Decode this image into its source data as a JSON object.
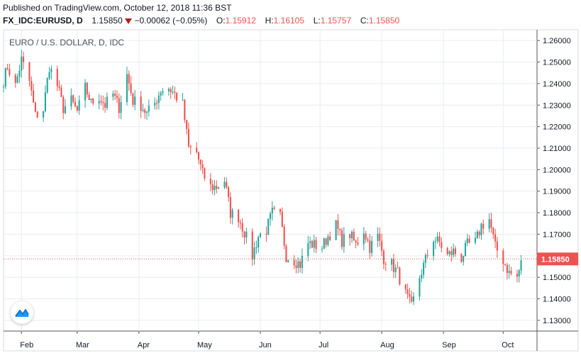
{
  "header": {
    "published": "Published on TradingView.com, October 12, 2018 11:36 BST",
    "symbol": "FX_IDC:EURUSD, D",
    "last": "1.15850",
    "change": "−0.00062 (−0.05%)",
    "o_label": "O:",
    "o_value": "1.15912",
    "h_label": "H:",
    "h_value": "1.16105",
    "l_label": "L:",
    "l_value": "1.15757",
    "c_label": "C:",
    "c_value": "1.15850"
  },
  "colors": {
    "up": "#26a69a",
    "down": "#ef5350",
    "grid": "#e9ecf1",
    "axis": "#555555"
  },
  "icons": {
    "change_direction": "down-triangle-icon",
    "logo": "tradingview-logo-icon"
  },
  "chart_data": {
    "type": "candlestick",
    "title": "EURO / U.S. DOLLAR, D, IDC",
    "ylim": [
      1.125,
      1.265
    ],
    "y_ticks": [
      "1.26000",
      "1.25000",
      "1.24000",
      "1.23000",
      "1.22000",
      "1.21000",
      "1.20000",
      "1.19000",
      "1.18000",
      "1.17000",
      "1.16000",
      "1.15000",
      "1.14000",
      "1.13000"
    ],
    "x_labels": [
      {
        "label": "Feb",
        "date": "2018-02-01"
      },
      {
        "label": "Mar",
        "date": "2018-03-01"
      },
      {
        "label": "Apr",
        "date": "2018-04-01"
      },
      {
        "label": "May",
        "date": "2018-05-01"
      },
      {
        "label": "Jun",
        "date": "2018-06-01"
      },
      {
        "label": "Jul",
        "date": "2018-07-01"
      },
      {
        "label": "Aug",
        "date": "2018-08-01"
      },
      {
        "label": "Sep",
        "date": "2018-09-01"
      },
      {
        "label": "Oct",
        "date": "2018-10-01"
      }
    ],
    "x_range": [
      "2018-01-23",
      "2018-10-18"
    ],
    "last_price": 1.1585,
    "last_price_label": "1.15850",
    "closes": [
      [
        "2018-01-23",
        1.2415
      ],
      [
        "2018-01-25",
        1.248
      ],
      [
        "2018-01-29",
        1.239
      ],
      [
        "2018-02-01",
        1.251
      ],
      [
        "2018-02-05",
        1.241
      ],
      [
        "2018-02-08",
        1.225
      ],
      [
        "2018-02-12",
        1.228
      ],
      [
        "2018-02-15",
        1.248
      ],
      [
        "2018-02-19",
        1.239
      ],
      [
        "2018-02-22",
        1.2285
      ],
      [
        "2018-02-26",
        1.232
      ],
      [
        "2018-03-01",
        1.227
      ],
      [
        "2018-03-05",
        1.238
      ],
      [
        "2018-03-08",
        1.231
      ],
      [
        "2018-03-12",
        1.234
      ],
      [
        "2018-03-15",
        1.23
      ],
      [
        "2018-03-19",
        1.235
      ],
      [
        "2018-03-22",
        1.229
      ],
      [
        "2018-03-26",
        1.244
      ],
      [
        "2018-03-29",
        1.232
      ],
      [
        "2018-04-02",
        1.23
      ],
      [
        "2018-04-05",
        1.226
      ],
      [
        "2018-04-09",
        1.231
      ],
      [
        "2018-04-12",
        1.237
      ],
      [
        "2018-04-16",
        1.238
      ],
      [
        "2018-04-19",
        1.235
      ],
      [
        "2018-04-23",
        1.23
      ],
      [
        "2018-04-26",
        1.21
      ],
      [
        "2018-04-30",
        1.208
      ],
      [
        "2018-05-03",
        1.198
      ],
      [
        "2018-05-07",
        1.192
      ],
      [
        "2018-05-10",
        1.192
      ],
      [
        "2018-05-14",
        1.195
      ],
      [
        "2018-05-17",
        1.18
      ],
      [
        "2018-05-21",
        1.178
      ],
      [
        "2018-05-24",
        1.171
      ],
      [
        "2018-05-28",
        1.16
      ],
      [
        "2018-05-31",
        1.169
      ],
      [
        "2018-06-04",
        1.172
      ],
      [
        "2018-06-07",
        1.18
      ],
      [
        "2018-06-11",
        1.178
      ],
      [
        "2018-06-14",
        1.16
      ],
      [
        "2018-06-18",
        1.158
      ],
      [
        "2018-06-21",
        1.156
      ],
      [
        "2018-06-25",
        1.166
      ],
      [
        "2018-06-28",
        1.165
      ],
      [
        "2018-07-02",
        1.164
      ],
      [
        "2018-07-05",
        1.169
      ],
      [
        "2018-07-09",
        1.174
      ],
      [
        "2018-07-12",
        1.167
      ],
      [
        "2018-07-16",
        1.17
      ],
      [
        "2018-07-19",
        1.165
      ],
      [
        "2018-07-23",
        1.172
      ],
      [
        "2018-07-26",
        1.164
      ],
      [
        "2018-07-30",
        1.169
      ],
      [
        "2018-08-02",
        1.159
      ],
      [
        "2018-08-06",
        1.156
      ],
      [
        "2018-08-09",
        1.152
      ],
      [
        "2018-08-13",
        1.142
      ],
      [
        "2018-08-16",
        1.136
      ],
      [
        "2018-08-20",
        1.15
      ],
      [
        "2018-08-23",
        1.158
      ],
      [
        "2018-08-27",
        1.168
      ],
      [
        "2018-08-30",
        1.166
      ],
      [
        "2018-09-03",
        1.16
      ],
      [
        "2018-09-06",
        1.162
      ],
      [
        "2018-09-10",
        1.159
      ],
      [
        "2018-09-13",
        1.165
      ],
      [
        "2018-09-17",
        1.166
      ],
      [
        "2018-09-20",
        1.174
      ],
      [
        "2018-09-24",
        1.177
      ],
      [
        "2018-09-27",
        1.164
      ],
      [
        "2018-10-01",
        1.158
      ],
      [
        "2018-10-04",
        1.152
      ],
      [
        "2018-10-08",
        1.15
      ],
      [
        "2018-10-11",
        1.1595
      ]
    ]
  }
}
